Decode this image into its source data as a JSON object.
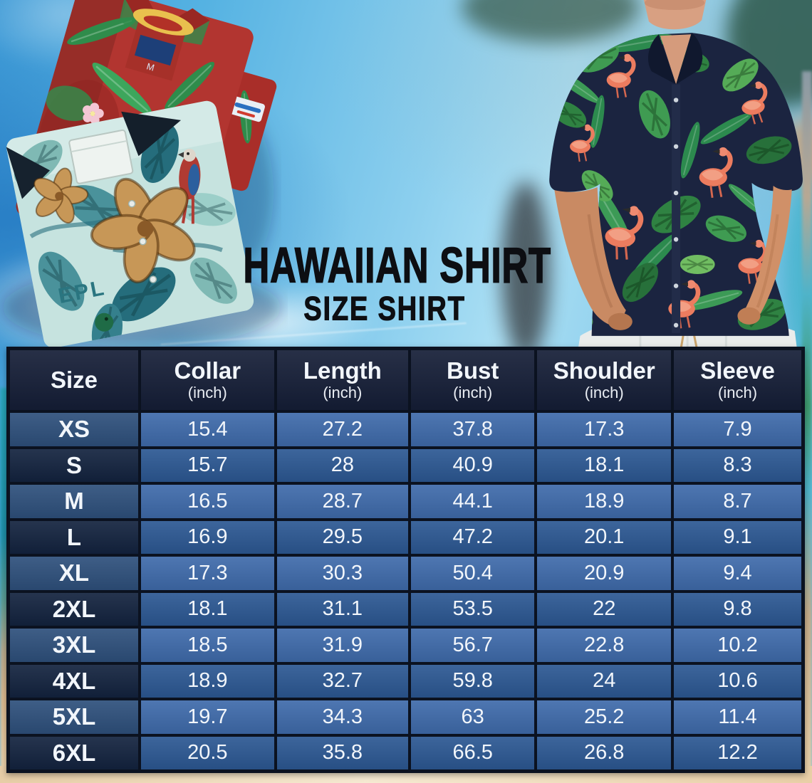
{
  "title": {
    "main": "HAWAIIAN SHIRT",
    "sub": "SIZE SHIRT"
  },
  "scene": {
    "left_photo": "folded-hawaiian-shirts-photo",
    "right_photo": "man-wearing-flamingo-hawaiian-shirt-photo",
    "shirt_print_text": "EPL",
    "shirt_tag_letter": "M"
  },
  "size_table": {
    "columns": [
      {
        "label": "Size",
        "unit": ""
      },
      {
        "label": "Collar",
        "unit": "(inch)"
      },
      {
        "label": "Length",
        "unit": "(inch)"
      },
      {
        "label": "Bust",
        "unit": "(inch)"
      },
      {
        "label": "Shoulder",
        "unit": "(inch)"
      },
      {
        "label": "Sleeve",
        "unit": "(inch)"
      }
    ],
    "rows": [
      {
        "size": "XS",
        "values": [
          "15.4",
          "27.2",
          "37.8",
          "17.3",
          "7.9"
        ]
      },
      {
        "size": "S",
        "values": [
          "15.7",
          "28",
          "40.9",
          "18.1",
          "8.3"
        ]
      },
      {
        "size": "M",
        "values": [
          "16.5",
          "28.7",
          "44.1",
          "18.9",
          "8.7"
        ]
      },
      {
        "size": "L",
        "values": [
          "16.9",
          "29.5",
          "47.2",
          "20.1",
          "9.1"
        ]
      },
      {
        "size": "XL",
        "values": [
          "17.3",
          "30.3",
          "50.4",
          "20.9",
          "9.4"
        ]
      },
      {
        "size": "2XL",
        "values": [
          "18.1",
          "31.1",
          "53.5",
          "22",
          "9.8"
        ]
      },
      {
        "size": "3XL",
        "values": [
          "18.5",
          "31.9",
          "56.7",
          "22.8",
          "10.2"
        ]
      },
      {
        "size": "4XL",
        "values": [
          "18.9",
          "32.7",
          "59.8",
          "24",
          "10.6"
        ]
      },
      {
        "size": "5XL",
        "values": [
          "19.7",
          "34.3",
          "63",
          "25.2",
          "11.4"
        ]
      },
      {
        "size": "6XL",
        "values": [
          "20.5",
          "35.8",
          "66.5",
          "26.8",
          "12.2"
        ]
      }
    ]
  },
  "chart_data": {
    "type": "table",
    "title": "Hawaiian Shirt Size Shirt",
    "columns": [
      "Size",
      "Collar (inch)",
      "Length (inch)",
      "Bust (inch)",
      "Shoulder (inch)",
      "Sleeve (inch)"
    ],
    "rows": [
      [
        "XS",
        15.4,
        27.2,
        37.8,
        17.3,
        7.9
      ],
      [
        "S",
        15.7,
        28,
        40.9,
        18.1,
        8.3
      ],
      [
        "M",
        16.5,
        28.7,
        44.1,
        18.9,
        8.7
      ],
      [
        "L",
        16.9,
        29.5,
        47.2,
        20.1,
        9.1
      ],
      [
        "XL",
        17.3,
        30.3,
        50.4,
        20.9,
        9.4
      ],
      [
        "2XL",
        18.1,
        31.1,
        53.5,
        22,
        9.8
      ],
      [
        "3XL",
        18.5,
        31.9,
        56.7,
        22.8,
        10.2
      ],
      [
        "4XL",
        18.9,
        32.7,
        59.8,
        24,
        10.6
      ],
      [
        "5XL",
        19.7,
        34.3,
        63,
        25.2,
        11.4
      ],
      [
        "6XL",
        20.5,
        35.8,
        66.5,
        26.8,
        12.2
      ]
    ]
  },
  "colors": {
    "header_bg": "#151e37",
    "size_cell_odd": "#2e507c",
    "size_cell_even": "#13233f",
    "value_cell_odd": "#3f6bab",
    "value_cell_even": "#2c5893",
    "table_border": "#0b1220",
    "table_text": "#f2f6fb",
    "title_text": "#0d0e12",
    "sky_blue": "#55b2e2",
    "sand": "#eed7b2"
  }
}
